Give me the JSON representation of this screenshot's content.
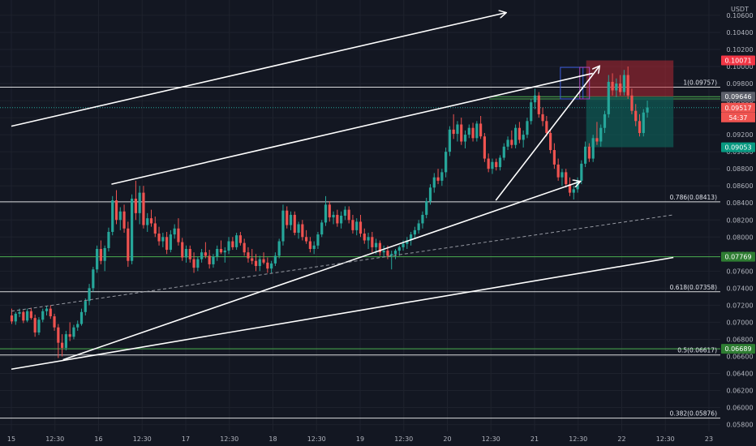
{
  "header": {
    "currency": "USDT"
  },
  "colors": {
    "background": "#131722",
    "grid": "#1e222d",
    "axis_text": "#b2b5be",
    "up": "#26a69a",
    "down": "#ef5350",
    "white_line": "#ffffff",
    "green_line": "#4caf50",
    "price_badge": "#ef5350",
    "tp_badge": "#089981",
    "sl_badge": "#f23645",
    "level_badge": "#5d606b"
  },
  "axes": {
    "y_ticks": [
      "0.10600",
      "0.10400",
      "0.10200",
      "0.10000",
      "0.09800",
      "0.09600",
      "0.09400",
      "0.09200",
      "0.09000",
      "0.08800",
      "0.08600",
      "0.08400",
      "0.08200",
      "0.08000",
      "0.07800",
      "0.07600",
      "0.07400",
      "0.07200",
      "0.07000",
      "0.06800",
      "0.06600",
      "0.06400",
      "0.06200",
      "0.06000",
      "0.05800"
    ],
    "x_ticks": [
      "15",
      "12:30",
      "16",
      "12:30",
      "17",
      "12:30",
      "18",
      "12:30",
      "19",
      "12:30",
      "20",
      "12:30",
      "21",
      "12:30",
      "22",
      "12:30",
      "23"
    ]
  },
  "badges": {
    "target": "0.10071",
    "entry": "0.09646",
    "last_price": "0.09517",
    "countdown": "54:37",
    "stop": "0.09053",
    "green_level_1": "0.07769",
    "green_level_2": "0.06689"
  },
  "fib_levels": [
    {
      "label": "1(0.09757)",
      "price": 0.09757
    },
    {
      "label": "0.786(0.08413)",
      "price": 0.08413
    },
    {
      "label": "0.618(0.07358)",
      "price": 0.07358
    },
    {
      "label": "0.5(0.06617)",
      "price": 0.06617
    },
    {
      "label": "0.382(0.05876)",
      "price": 0.05876
    }
  ],
  "chart_data": {
    "type": "candlestick",
    "y_unit": "USDT",
    "ylim": [
      0.0572,
      0.1078
    ],
    "x_range_hours": [
      0,
      216
    ],
    "grid": true,
    "fib_retracement": [
      0.09757,
      0.08413,
      0.07358,
      0.06617,
      0.05876
    ],
    "horizontal_green_levels": [
      0.07769,
      0.06689,
      0.09646,
      0.0962
    ],
    "position": {
      "entry": 0.09646,
      "target": 0.10071,
      "stop": 0.09053,
      "last": 0.09517
    },
    "trend_lines": [
      {
        "style": "solid",
        "arrow": true,
        "points": [
          [
            0,
            0.093
          ],
          [
            153,
            0.1063
          ]
        ]
      },
      {
        "style": "solid",
        "arrow": false,
        "points": [
          [
            31,
            0.0862
          ],
          [
            180,
            0.0992
          ]
        ]
      },
      {
        "style": "solid",
        "arrow": false,
        "points": [
          [
            0,
            0.0645
          ],
          [
            205,
            0.0776
          ]
        ]
      },
      {
        "style": "solid",
        "arrow": true,
        "points": [
          [
            16,
            0.0656
          ],
          [
            176,
            0.0865
          ]
        ]
      },
      {
        "style": "dashed",
        "arrow": false,
        "points": [
          [
            0,
            0.0713
          ],
          [
            205,
            0.0826
          ]
        ]
      },
      {
        "style": "solid",
        "arrow": true,
        "points": [
          [
            150,
            0.0843
          ],
          [
            182,
            0.1
          ]
        ]
      }
    ],
    "candles": [
      [
        0.0708,
        0.0716,
        0.0698,
        0.0701
      ],
      [
        0.0701,
        0.0712,
        0.0697,
        0.071
      ],
      [
        0.071,
        0.0716,
        0.0706,
        0.0712
      ],
      [
        0.0712,
        0.0714,
        0.0699,
        0.0702
      ],
      [
        0.0702,
        0.0716,
        0.07,
        0.0713
      ],
      [
        0.0713,
        0.0717,
        0.0703,
        0.0705
      ],
      [
        0.0705,
        0.0709,
        0.0683,
        0.0688
      ],
      [
        0.0688,
        0.0706,
        0.0685,
        0.0703
      ],
      [
        0.0703,
        0.0716,
        0.07,
        0.0713
      ],
      [
        0.0713,
        0.0719,
        0.0708,
        0.0716
      ],
      [
        0.0716,
        0.072,
        0.0704,
        0.0707
      ],
      [
        0.0707,
        0.071,
        0.069,
        0.0694
      ],
      [
        0.0694,
        0.0698,
        0.0658,
        0.0676
      ],
      [
        0.0676,
        0.0686,
        0.066,
        0.067
      ],
      [
        0.067,
        0.069,
        0.0667,
        0.0686
      ],
      [
        0.0686,
        0.07,
        0.0678,
        0.0683
      ],
      [
        0.0683,
        0.0697,
        0.068,
        0.0694
      ],
      [
        0.0694,
        0.0702,
        0.069,
        0.0698
      ],
      [
        0.0698,
        0.0716,
        0.0696,
        0.0712
      ],
      [
        0.0712,
        0.0728,
        0.0708,
        0.0725
      ],
      [
        0.0725,
        0.0745,
        0.072,
        0.074
      ],
      [
        0.074,
        0.0765,
        0.0736,
        0.0762
      ],
      [
        0.0762,
        0.079,
        0.0758,
        0.0786
      ],
      [
        0.0786,
        0.0796,
        0.0768,
        0.0772
      ],
      [
        0.0772,
        0.079,
        0.076,
        0.0787
      ],
      [
        0.0787,
        0.0811,
        0.0783,
        0.0806
      ],
      [
        0.0806,
        0.0848,
        0.0802,
        0.0843
      ],
      [
        0.0843,
        0.0855,
        0.0815,
        0.082
      ],
      [
        0.082,
        0.0835,
        0.0808,
        0.083
      ],
      [
        0.083,
        0.0838,
        0.0805,
        0.081
      ],
      [
        0.081,
        0.0818,
        0.0765,
        0.0772
      ],
      [
        0.0772,
        0.085,
        0.0768,
        0.0845
      ],
      [
        0.0845,
        0.0866,
        0.082,
        0.0828
      ],
      [
        0.0828,
        0.086,
        0.0815,
        0.0852
      ],
      [
        0.0852,
        0.086,
        0.081,
        0.0814
      ],
      [
        0.0814,
        0.0828,
        0.0806,
        0.0822
      ],
      [
        0.0822,
        0.0832,
        0.0812,
        0.0816
      ],
      [
        0.0816,
        0.0824,
        0.08,
        0.0804
      ],
      [
        0.0804,
        0.0812,
        0.079,
        0.0795
      ],
      [
        0.0795,
        0.0805,
        0.0788,
        0.08
      ],
      [
        0.08,
        0.0806,
        0.078,
        0.0785
      ],
      [
        0.0785,
        0.0808,
        0.0782,
        0.0803
      ],
      [
        0.0803,
        0.0815,
        0.0798,
        0.081
      ],
      [
        0.081,
        0.0822,
        0.079,
        0.0794
      ],
      [
        0.0794,
        0.0799,
        0.0772,
        0.0776
      ],
      [
        0.0776,
        0.079,
        0.077,
        0.0786
      ],
      [
        0.0786,
        0.079,
        0.077,
        0.0774
      ],
      [
        0.0774,
        0.0782,
        0.0758,
        0.0764
      ],
      [
        0.0764,
        0.0777,
        0.076,
        0.0774
      ],
      [
        0.0774,
        0.0786,
        0.077,
        0.0782
      ],
      [
        0.0782,
        0.0794,
        0.0775,
        0.0778
      ],
      [
        0.0778,
        0.0785,
        0.0763,
        0.0768
      ],
      [
        0.0768,
        0.078,
        0.0764,
        0.0777
      ],
      [
        0.0777,
        0.079,
        0.0772,
        0.0786
      ],
      [
        0.0786,
        0.0796,
        0.078,
        0.0782
      ],
      [
        0.0782,
        0.0788,
        0.077,
        0.0784
      ],
      [
        0.0784,
        0.08,
        0.078,
        0.0795
      ],
      [
        0.0795,
        0.08,
        0.0785,
        0.0788
      ],
      [
        0.0788,
        0.0805,
        0.0785,
        0.0802
      ],
      [
        0.0802,
        0.0806,
        0.079,
        0.0793
      ],
      [
        0.0793,
        0.0798,
        0.0778,
        0.0782
      ],
      [
        0.0782,
        0.0788,
        0.077,
        0.0775
      ],
      [
        0.0775,
        0.0786,
        0.0768,
        0.0772
      ],
      [
        0.0772,
        0.078,
        0.076,
        0.0766
      ],
      [
        0.0766,
        0.0778,
        0.076,
        0.0774
      ],
      [
        0.0774,
        0.0782,
        0.0768,
        0.077
      ],
      [
        0.077,
        0.0776,
        0.0758,
        0.0763
      ],
      [
        0.0763,
        0.0772,
        0.0758,
        0.0769
      ],
      [
        0.0769,
        0.0782,
        0.0766,
        0.0778
      ],
      [
        0.0778,
        0.0798,
        0.0775,
        0.0795
      ],
      [
        0.0795,
        0.0838,
        0.079,
        0.0831
      ],
      [
        0.0831,
        0.0836,
        0.081,
        0.0814
      ],
      [
        0.0814,
        0.083,
        0.0808,
        0.0826
      ],
      [
        0.0826,
        0.083,
        0.0802,
        0.0805
      ],
      [
        0.0805,
        0.0818,
        0.0798,
        0.0815
      ],
      [
        0.0815,
        0.082,
        0.0796,
        0.08
      ],
      [
        0.08,
        0.0808,
        0.0792,
        0.0795
      ],
      [
        0.0795,
        0.08,
        0.0782,
        0.0786
      ],
      [
        0.0786,
        0.0795,
        0.078,
        0.079
      ],
      [
        0.079,
        0.0806,
        0.0786,
        0.0803
      ],
      [
        0.0803,
        0.082,
        0.08,
        0.0817
      ],
      [
        0.0817,
        0.0848,
        0.0813,
        0.0838
      ],
      [
        0.0838,
        0.0842,
        0.0818,
        0.0823
      ],
      [
        0.0823,
        0.083,
        0.0815,
        0.0826
      ],
      [
        0.0826,
        0.0832,
        0.0812,
        0.0816
      ],
      [
        0.0816,
        0.083,
        0.081,
        0.0825
      ],
      [
        0.0825,
        0.0836,
        0.082,
        0.0832
      ],
      [
        0.0832,
        0.0836,
        0.0816,
        0.082
      ],
      [
        0.082,
        0.0826,
        0.0804,
        0.0808
      ],
      [
        0.0808,
        0.0822,
        0.0802,
        0.0818
      ],
      [
        0.0818,
        0.0826,
        0.08,
        0.0804
      ],
      [
        0.0804,
        0.081,
        0.0792,
        0.0796
      ],
      [
        0.0796,
        0.0805,
        0.0786,
        0.08
      ],
      [
        0.08,
        0.0806,
        0.0782,
        0.0788
      ],
      [
        0.0788,
        0.0798,
        0.078,
        0.0793
      ],
      [
        0.0793,
        0.0796,
        0.0778,
        0.0782
      ],
      [
        0.0782,
        0.079,
        0.0776,
        0.0784
      ],
      [
        0.0784,
        0.079,
        0.0774,
        0.0778
      ],
      [
        0.0778,
        0.0784,
        0.0762,
        0.078
      ],
      [
        0.078,
        0.0786,
        0.0774,
        0.0784
      ],
      [
        0.0784,
        0.079,
        0.0778,
        0.0788
      ],
      [
        0.0788,
        0.0796,
        0.0784,
        0.0792
      ],
      [
        0.0792,
        0.08,
        0.0786,
        0.0796
      ],
      [
        0.0796,
        0.0806,
        0.079,
        0.0803
      ],
      [
        0.0803,
        0.0812,
        0.0798,
        0.0808
      ],
      [
        0.0808,
        0.082,
        0.0804,
        0.0816
      ],
      [
        0.0816,
        0.083,
        0.081,
        0.0826
      ],
      [
        0.0826,
        0.0846,
        0.0822,
        0.0842
      ],
      [
        0.0842,
        0.0862,
        0.0838,
        0.0858
      ],
      [
        0.0858,
        0.0875,
        0.0852,
        0.087
      ],
      [
        0.087,
        0.088,
        0.0862,
        0.0866
      ],
      [
        0.0866,
        0.088,
        0.086,
        0.0876
      ],
      [
        0.0876,
        0.0905,
        0.087,
        0.09
      ],
      [
        0.09,
        0.093,
        0.0895,
        0.0926
      ],
      [
        0.0926,
        0.0944,
        0.0915,
        0.0921
      ],
      [
        0.0921,
        0.0936,
        0.0912,
        0.0932
      ],
      [
        0.0932,
        0.094,
        0.0908,
        0.0912
      ],
      [
        0.0912,
        0.0925,
        0.0904,
        0.092
      ],
      [
        0.092,
        0.0932,
        0.0916,
        0.0928
      ],
      [
        0.0928,
        0.0934,
        0.0912,
        0.0916
      ],
      [
        0.0916,
        0.0936,
        0.0912,
        0.0933
      ],
      [
        0.0933,
        0.0942,
        0.0915,
        0.0918
      ],
      [
        0.0918,
        0.0922,
        0.0888,
        0.0892
      ],
      [
        0.0892,
        0.0898,
        0.0876,
        0.088
      ],
      [
        0.088,
        0.0892,
        0.0874,
        0.0888
      ],
      [
        0.0888,
        0.0892,
        0.0878,
        0.0882
      ],
      [
        0.0882,
        0.0896,
        0.0878,
        0.0893
      ],
      [
        0.0893,
        0.091,
        0.089,
        0.0906
      ],
      [
        0.0906,
        0.0918,
        0.0902,
        0.0914
      ],
      [
        0.0914,
        0.0925,
        0.0904,
        0.0908
      ],
      [
        0.0908,
        0.0932,
        0.0904,
        0.0928
      ],
      [
        0.0928,
        0.0935,
        0.091,
        0.0914
      ],
      [
        0.0914,
        0.0925,
        0.0905,
        0.092
      ],
      [
        0.092,
        0.094,
        0.0916,
        0.0936
      ],
      [
        0.0936,
        0.0962,
        0.0932,
        0.0958
      ],
      [
        0.0958,
        0.0974,
        0.095,
        0.0966
      ],
      [
        0.0966,
        0.097,
        0.094,
        0.0944
      ],
      [
        0.0944,
        0.0952,
        0.093,
        0.0936
      ],
      [
        0.0936,
        0.0942,
        0.0918,
        0.0922
      ],
      [
        0.0922,
        0.0926,
        0.0898,
        0.0902
      ],
      [
        0.0902,
        0.091,
        0.088,
        0.0885
      ],
      [
        0.0885,
        0.0892,
        0.0866,
        0.087
      ],
      [
        0.087,
        0.088,
        0.086,
        0.0876
      ],
      [
        0.0876,
        0.088,
        0.0858,
        0.0862
      ],
      [
        0.0862,
        0.087,
        0.0848,
        0.0852
      ],
      [
        0.0852,
        0.086,
        0.0844,
        0.0856
      ],
      [
        0.0856,
        0.087,
        0.0852,
        0.0866
      ],
      [
        0.0866,
        0.089,
        0.0862,
        0.0886
      ],
      [
        0.0886,
        0.0912,
        0.0882,
        0.0906
      ],
      [
        0.0906,
        0.091,
        0.0888,
        0.0892
      ],
      [
        0.0892,
        0.092,
        0.0888,
        0.0916
      ],
      [
        0.0916,
        0.0935,
        0.0908,
        0.0912
      ],
      [
        0.0912,
        0.0932,
        0.0906,
        0.0928
      ],
      [
        0.0928,
        0.0948,
        0.0922,
        0.0944
      ],
      [
        0.0944,
        0.099,
        0.094,
        0.0982
      ],
      [
        0.0982,
        0.0992,
        0.0966,
        0.0972
      ],
      [
        0.0972,
        0.0986,
        0.0964,
        0.098
      ],
      [
        0.098,
        0.099,
        0.0966,
        0.097
      ],
      [
        0.097,
        0.0996,
        0.0966,
        0.099
      ],
      [
        0.099,
        0.1,
        0.0962,
        0.0966
      ],
      [
        0.0966,
        0.0974,
        0.0944,
        0.0948
      ],
      [
        0.0948,
        0.0956,
        0.093,
        0.0936
      ],
      [
        0.0936,
        0.0944,
        0.0918,
        0.0922
      ],
      [
        0.0922,
        0.095,
        0.0918,
        0.0946
      ],
      [
        0.0946,
        0.096,
        0.094,
        0.0952
      ]
    ]
  }
}
